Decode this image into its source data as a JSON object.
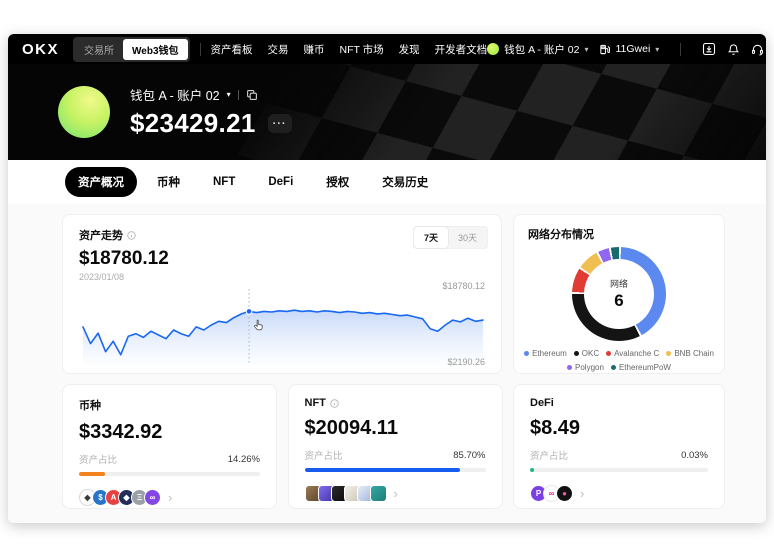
{
  "topbar": {
    "logo": "OKX",
    "mode_toggle": {
      "options": [
        "交易所",
        "Web3钱包"
      ],
      "active": "Web3钱包"
    },
    "nav_items": [
      "资产看板",
      "交易",
      "赚币",
      "NFT 市场",
      "发现",
      "开发者文档"
    ],
    "wallet_selector": {
      "label": "钱包 A - 账户 02"
    },
    "gas": {
      "label": "11Gwei"
    },
    "action_icons": [
      "qr-download-icon",
      "bell-icon",
      "headset-icon",
      "globe-icon"
    ]
  },
  "header": {
    "wallet_name": "钱包 A - 账户 02",
    "balance": "$23429.21",
    "more_label": "···"
  },
  "tabs": {
    "items": [
      "资产概况",
      "币种",
      "NFT",
      "DeFi",
      "授权",
      "交易历史"
    ],
    "active": "资产概况"
  },
  "trend_card": {
    "title": "资产走势",
    "range_options": [
      "7天",
      "30天"
    ],
    "active_range": "7天",
    "current_value": "$18780.12",
    "current_date": "2023/01/08",
    "y_top_label": "$18780.12",
    "y_bottom_label": "$2190.26"
  },
  "network_card": {
    "title": "网络分布情况",
    "center_label": "网络",
    "center_value": "6"
  },
  "asset_cards": [
    {
      "key": "coins",
      "title": "币种",
      "has_info": false,
      "value": "$3342.92",
      "ratio_label": "资产占比",
      "ratio": "14.26%",
      "bar_pct": 14.26,
      "bar_color": "#F2831D",
      "tokens": [
        {
          "name": "eth-token-icon",
          "bg": "#ffffff",
          "fg": "#3c3c3d",
          "glyph": "◆",
          "border": "#d8d8d8"
        },
        {
          "name": "usdc-token-icon",
          "bg": "#2775CA",
          "fg": "#ffffff",
          "glyph": "$"
        },
        {
          "name": "avalanche-token-icon",
          "bg": "#E84142",
          "fg": "#ffffff",
          "glyph": "A"
        },
        {
          "name": "dark-token-icon",
          "bg": "#232D5C",
          "fg": "#ffffff",
          "glyph": "◆"
        },
        {
          "name": "gray-token-icon",
          "bg": "#9aa0a6",
          "fg": "#ffffff",
          "glyph": "Ξ"
        },
        {
          "name": "polygon-token-icon",
          "bg": "#8247E5",
          "fg": "#ffffff",
          "glyph": "∞"
        }
      ]
    },
    {
      "key": "nft",
      "title": "NFT",
      "has_info": true,
      "value": "$20094.11",
      "ratio_label": "资产占比",
      "ratio": "85.70%",
      "bar_pct": 85.7,
      "bar_color": "#155CEF",
      "thumbs": [
        {
          "name": "nft-thumb",
          "bg": "linear-gradient(135deg,#9c7a52,#5c4630)"
        },
        {
          "name": "nft-thumb",
          "bg": "linear-gradient(135deg,#7f6cf0,#4636a8)"
        },
        {
          "name": "nft-thumb",
          "bg": "linear-gradient(135deg,#2c2c2c,#0a0a0a)"
        },
        {
          "name": "nft-thumb",
          "bg": "linear-gradient(135deg,#f2efe8,#cfc8b8)"
        },
        {
          "name": "nft-thumb",
          "bg": "linear-gradient(135deg,#e8eef8,#9fb4dd)"
        },
        {
          "name": "nft-thumb",
          "bg": "linear-gradient(135deg,#35a8a2,#1f7d7a)"
        }
      ]
    },
    {
      "key": "defi",
      "title": "DeFi",
      "has_info": false,
      "value": "$8.49",
      "ratio_label": "资产占比",
      "ratio": "0.03%",
      "bar_pct": 2.5,
      "bar_color": "#16B979",
      "tokens": [
        {
          "name": "purple-protocol-icon",
          "bg": "#7B3FE4",
          "fg": "#ffffff",
          "glyph": "P"
        },
        {
          "name": "pink-protocol-icon",
          "bg": "#ffffff",
          "fg": "#E0218A",
          "glyph": "∞",
          "border": "#e8e8e8"
        },
        {
          "name": "dark-protocol-icon",
          "bg": "#111111",
          "fg": "#E85CA8",
          "glyph": "●"
        }
      ]
    }
  ],
  "chart_data": [
    {
      "type": "line",
      "title": "资产走势",
      "range_options": [
        "7天",
        "30天"
      ],
      "active_range": "7天",
      "hover_point": {
        "date": "2023/01/08",
        "value": 18780.12
      },
      "y_top_label": 18780.12,
      "y_bottom_label": 2190.26,
      "line_color": "#1868F2",
      "marker_index": 22,
      "values": [
        55,
        28,
        45,
        15,
        32,
        10,
        40,
        44,
        38,
        48,
        42,
        36,
        50,
        44,
        40,
        55,
        50,
        58,
        64,
        62,
        70,
        76,
        80,
        78,
        80,
        79,
        81,
        80,
        82,
        80,
        81,
        79,
        81,
        80,
        78,
        80,
        79,
        77,
        78,
        76,
        77,
        75,
        73,
        74,
        71,
        68,
        52,
        48,
        58,
        66,
        63,
        69,
        64,
        66
      ]
    },
    {
      "type": "donut",
      "title": "网络分布情况",
      "center": {
        "label": "网络",
        "value": 6
      },
      "legend_position": "bottom",
      "segments": [
        {
          "name": "Ethereum",
          "color": "#5C89F0",
          "pct": 42
        },
        {
          "name": "OKC",
          "color": "#141414",
          "pct": 33
        },
        {
          "name": "Avalanche C",
          "color": "#E23B33",
          "pct": 9
        },
        {
          "name": "BNB Chain",
          "color": "#F1BE51",
          "pct": 8
        },
        {
          "name": "Polygon",
          "color": "#9166F0",
          "pct": 4.5
        },
        {
          "name": "EthereumPoW",
          "color": "#176B6D",
          "pct": 3.5
        }
      ]
    }
  ]
}
